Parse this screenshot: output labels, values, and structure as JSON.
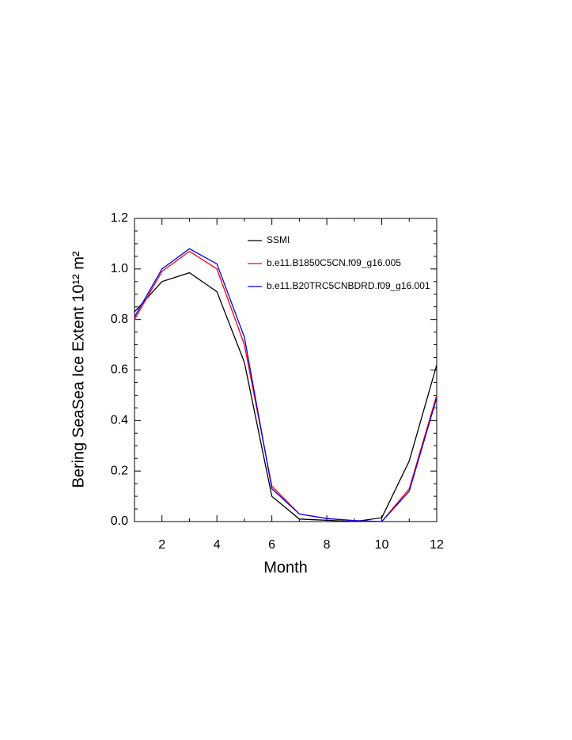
{
  "chart_data": {
    "type": "line",
    "xlabel": "Month",
    "ylabel": "Bering SeaSea Ice Extent 10¹² m²",
    "x": [
      1,
      2,
      3,
      4,
      5,
      6,
      7,
      8,
      9,
      10,
      11,
      12
    ],
    "series": [
      {
        "name": "SSMI",
        "color": "#000000",
        "values": [
          0.83,
          0.95,
          0.985,
          0.91,
          0.63,
          0.1,
          0.01,
          0.005,
          0.0,
          0.015,
          0.24,
          0.62
        ]
      },
      {
        "name": "b.e11.B1850C5CN.f09_g16.005",
        "color": "#ff0000",
        "values": [
          0.8,
          0.99,
          1.07,
          1.0,
          0.7,
          0.14,
          0.03,
          0.012,
          0.004,
          0.0,
          0.13,
          0.5
        ]
      },
      {
        "name": "b.e11.B20TRC5CNBDRD.f09_g16.001",
        "color": "#0000ff",
        "values": [
          0.81,
          1.0,
          1.08,
          1.02,
          0.73,
          0.13,
          0.03,
          0.012,
          0.004,
          0.0,
          0.12,
          0.49
        ]
      }
    ],
    "xlim": [
      1,
      12
    ],
    "xticks": [
      2,
      4,
      6,
      8,
      10,
      12
    ],
    "ylim": [
      0,
      1.2
    ],
    "yticks": [
      {
        "value": 0,
        "label": "0.0"
      },
      0.2,
      0.4,
      0.6,
      0.8,
      {
        "value": 1,
        "label": "1.0"
      },
      1.2
    ]
  }
}
